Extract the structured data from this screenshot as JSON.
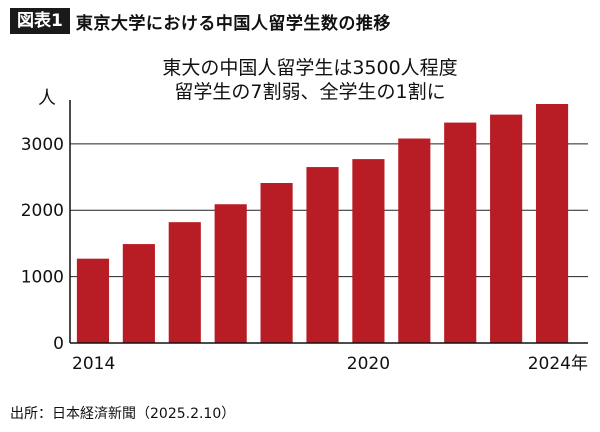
{
  "header": {
    "badge": "図表1",
    "title": "東京大学における中国人留学生数の推移"
  },
  "subtitle": {
    "line1": "東大の中国人留学生は3500人程度",
    "line2": "留学生の7割弱、全学生の1割に"
  },
  "source": "出所：日本経済新聞（2025.2.10）",
  "colors": {
    "bar": "#b81c24",
    "gridline": "#222222",
    "axis": "#111111"
  },
  "chart_data": {
    "type": "bar",
    "categories": [
      "2014",
      "2015",
      "2016",
      "2017",
      "2018",
      "2019",
      "2020",
      "2021",
      "2022",
      "2023",
      "2024"
    ],
    "values": [
      1270,
      1490,
      1820,
      2090,
      2410,
      2650,
      2770,
      3080,
      3320,
      3440,
      3600
    ],
    "x_tick_labels": [
      {
        "index": 0,
        "label": "2014"
      },
      {
        "index": 6,
        "label": "2020"
      },
      {
        "index": 10,
        "label": "2024年"
      }
    ],
    "ylabel": "人",
    "ylim": [
      0,
      3600
    ],
    "yticks": [
      0,
      1000,
      2000,
      3000
    ],
    "grid": true
  }
}
